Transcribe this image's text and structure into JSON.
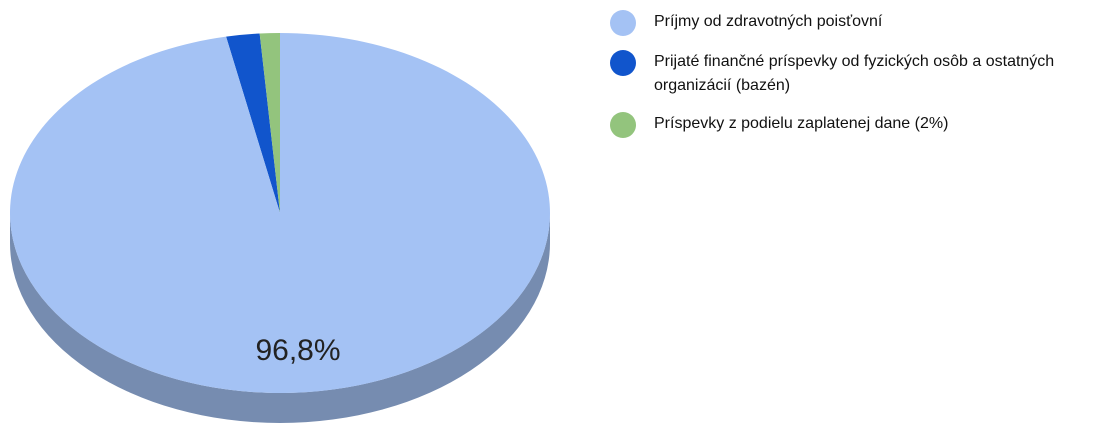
{
  "chart_data": {
    "type": "pie",
    "title": "",
    "categories": [
      "Príjmy od zdravotných poisťovní",
      "Prijaté finančné príspevky od fyzických osôb a ostatných organizácií (bazén)",
      "Príspevky z podielu zaplatenej dane (2%)"
    ],
    "values": [
      96.8,
      2.0,
      1.2
    ],
    "colors": [
      "#a4c2f4",
      "#1155cc",
      "#93c47d"
    ],
    "data_labels": [
      "96,8%",
      "",
      ""
    ],
    "legend_position": "right",
    "three_d": true
  }
}
